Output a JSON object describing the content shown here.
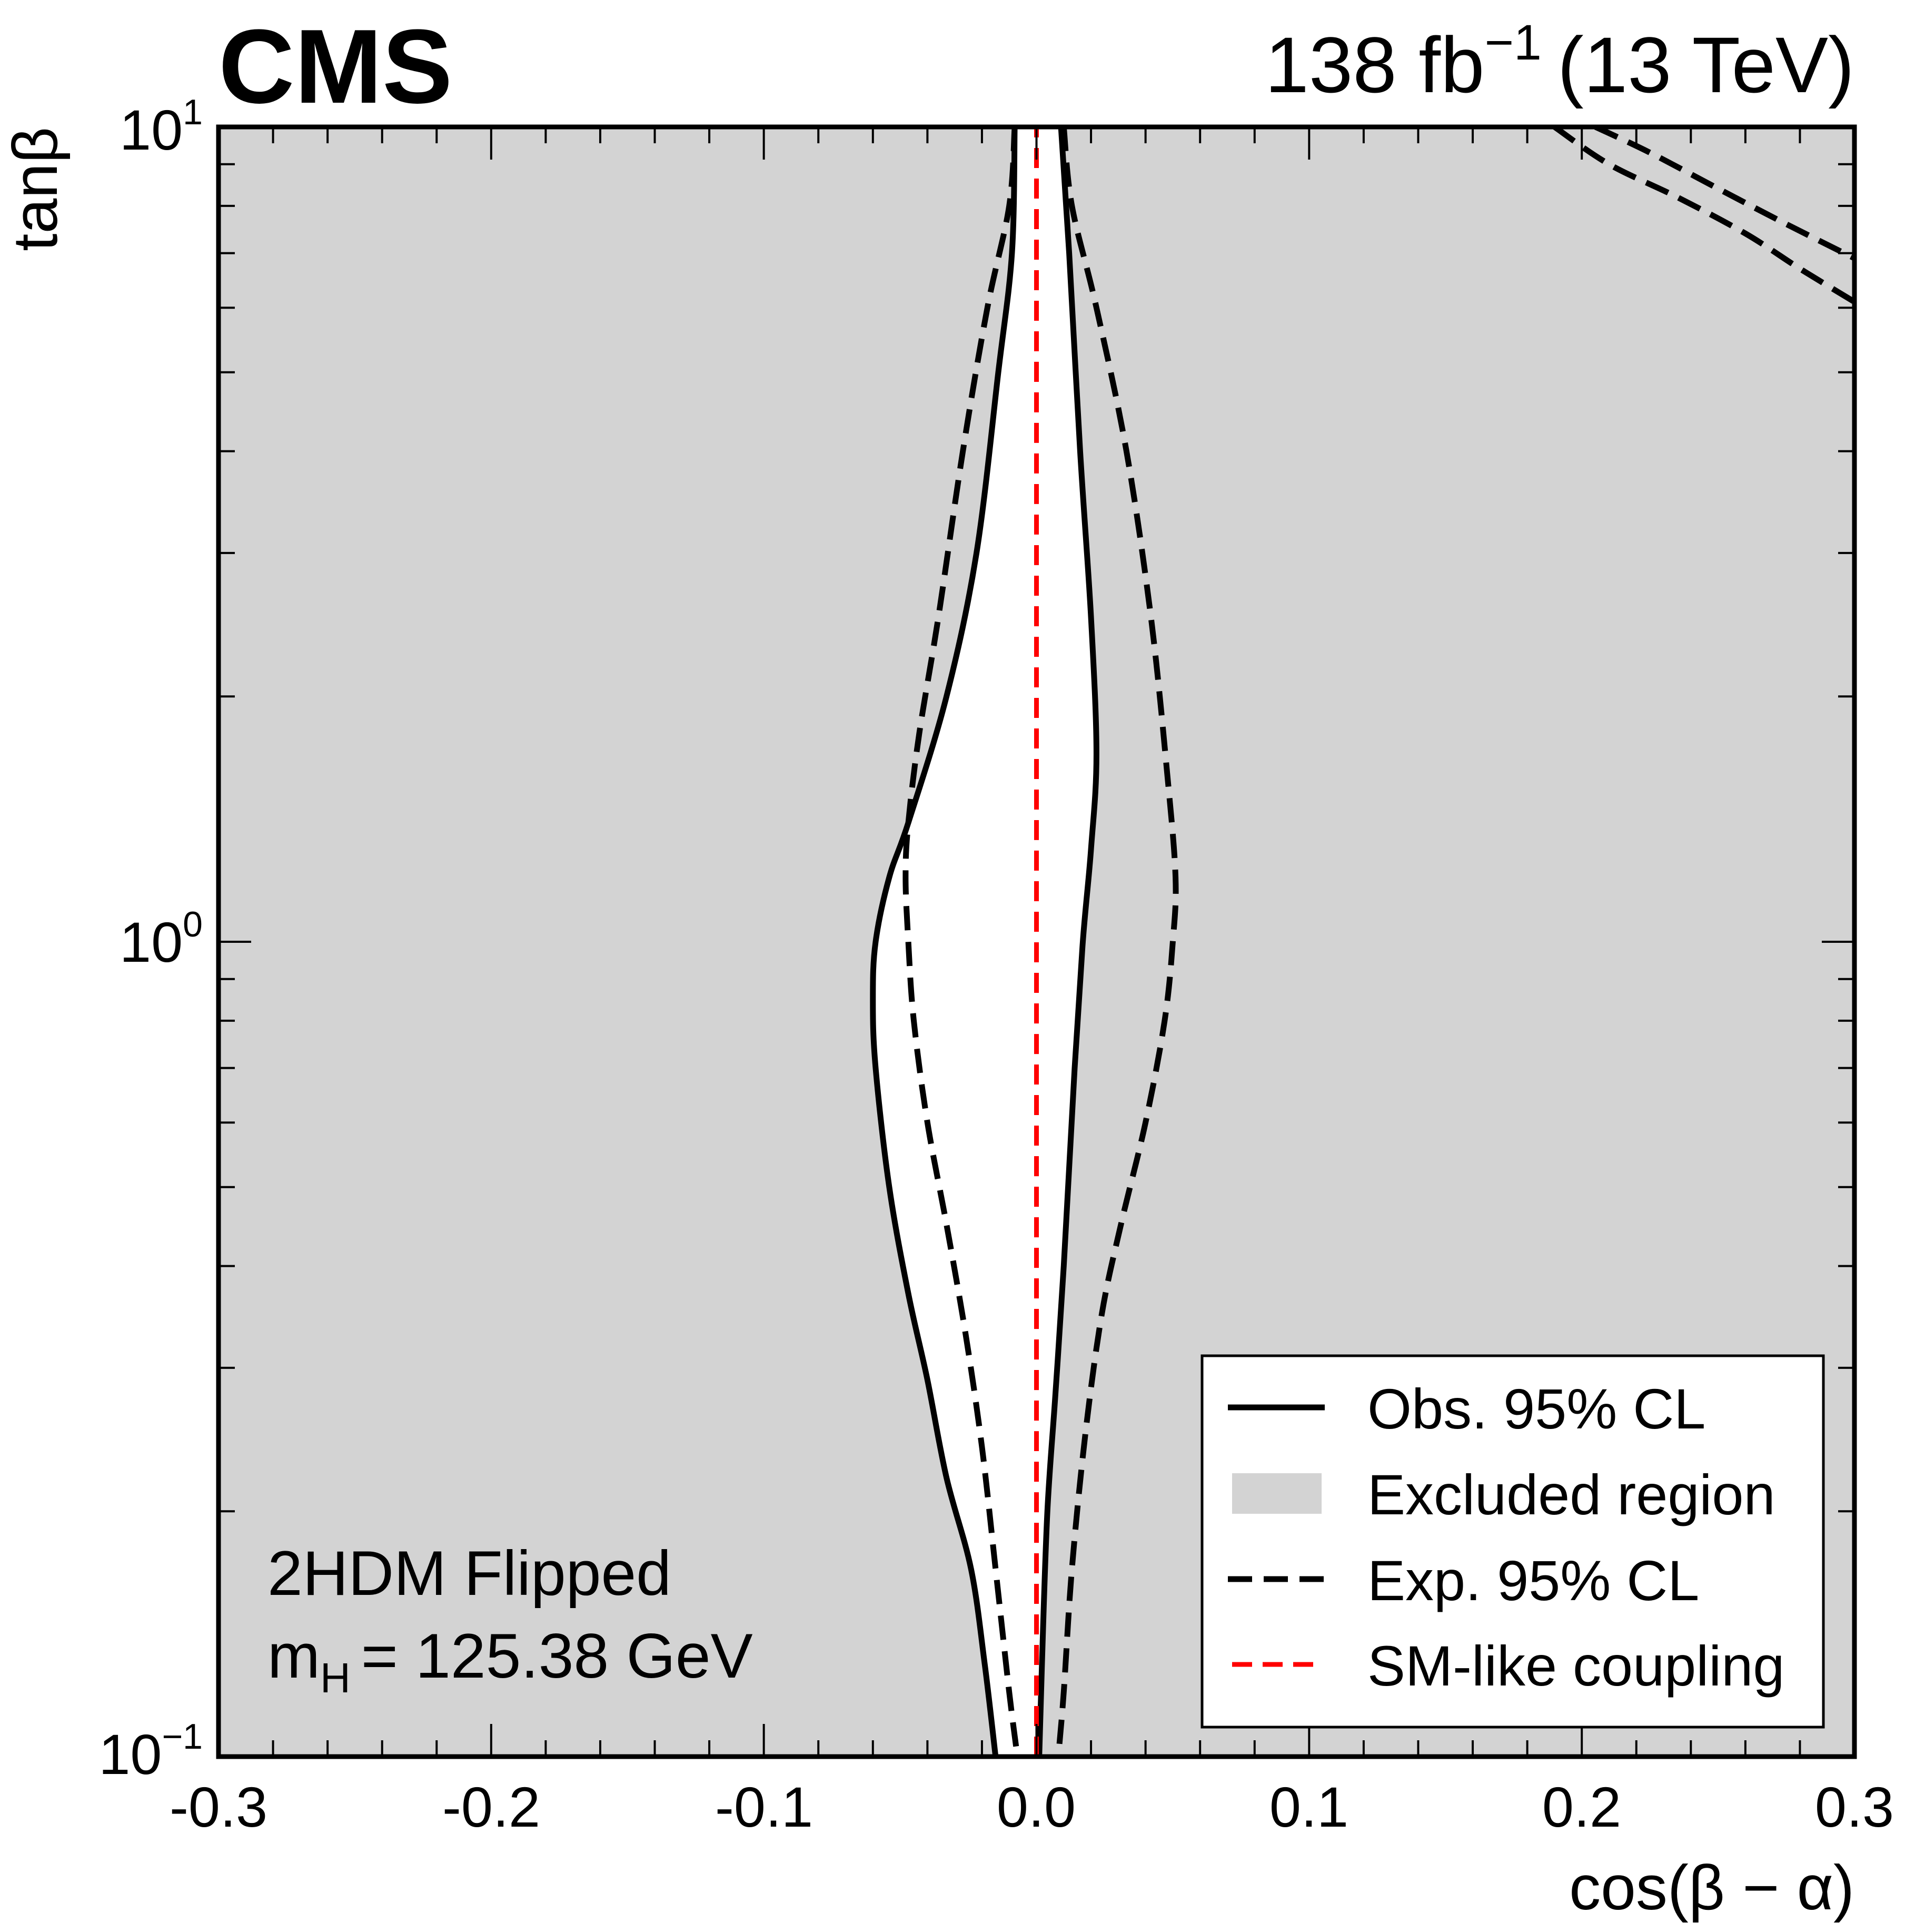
{
  "header": {
    "experiment": "CMS",
    "lumi_value": "138 fb",
    "lumi_exp": "−1",
    "energy": "(13 TeV)"
  },
  "annotation": {
    "model": "2HDM Flipped",
    "mass_sym": "m",
    "mass_sub": "H",
    "mass_val": "= 125.38 GeV"
  },
  "axes": {
    "xlabel": "cos(β − α)",
    "ylabel": "tanβ",
    "x_ticks": [
      "-0.3",
      "-0.2",
      "-0.1",
      "0.0",
      "0.1",
      "0.2",
      "0.3"
    ],
    "y_ticks": [
      {
        "base": "10",
        "exp": "−1"
      },
      {
        "base": "10",
        "exp": "0"
      },
      {
        "base": "10",
        "exp": "1"
      }
    ]
  },
  "legend": {
    "items": [
      {
        "label": "Obs. 95% CL",
        "style": "solid"
      },
      {
        "label": "Excluded region",
        "style": "fill"
      },
      {
        "label": "Exp. 95% CL",
        "style": "dashed"
      },
      {
        "label": "SM-like coupling",
        "style": "red-dashed"
      }
    ]
  },
  "colors": {
    "excluded_fill": "#d3d3d3",
    "allowed_fill": "#ffffff",
    "sm_line": "#ff0000",
    "contour": "#000000"
  },
  "chart_data": {
    "type": "contour",
    "title": "2HDM Flipped",
    "xlabel": "cos(β − α)",
    "ylabel": "tanβ",
    "xlim": [
      -0.3,
      0.3
    ],
    "ylim": [
      0.1,
      10
    ],
    "yscale": "log",
    "series": [
      {
        "name": "Obs. 95% CL left",
        "style": "solid",
        "points": [
          [
            -0.008,
            10
          ],
          [
            -0.009,
            7
          ],
          [
            -0.014,
            5
          ],
          [
            -0.022,
            3
          ],
          [
            -0.033,
            2
          ],
          [
            -0.047,
            1.4
          ],
          [
            -0.054,
            1.2
          ],
          [
            -0.059,
            1.0
          ],
          [
            -0.06,
            0.85
          ],
          [
            -0.059,
            0.7
          ],
          [
            -0.054,
            0.5
          ],
          [
            -0.047,
            0.37
          ],
          [
            -0.04,
            0.29
          ],
          [
            -0.033,
            0.22
          ],
          [
            -0.024,
            0.17
          ],
          [
            -0.019,
            0.13
          ],
          [
            -0.015,
            0.1
          ]
        ]
      },
      {
        "name": "Obs. 95% CL right",
        "style": "solid",
        "points": [
          [
            0.009,
            10
          ],
          [
            0.012,
            7
          ],
          [
            0.016,
            4
          ],
          [
            0.02,
            2.5
          ],
          [
            0.022,
            1.7
          ],
          [
            0.02,
            1.3
          ],
          [
            0.017,
            1.0
          ],
          [
            0.014,
            0.7
          ],
          [
            0.01,
            0.4
          ],
          [
            0.007,
            0.28
          ],
          [
            0.004,
            0.2
          ],
          [
            0.002,
            0.13
          ],
          [
            0.001,
            0.1
          ]
        ]
      },
      {
        "name": "Exp. 95% CL left",
        "style": "dashed",
        "points": [
          [
            -0.008,
            10
          ],
          [
            -0.01,
            8
          ],
          [
            -0.018,
            6
          ],
          [
            -0.027,
            4
          ],
          [
            -0.036,
            2.5
          ],
          [
            -0.043,
            1.8
          ],
          [
            -0.047,
            1.4
          ],
          [
            -0.048,
            1.2
          ],
          [
            -0.047,
            1.0
          ],
          [
            -0.045,
            0.8
          ],
          [
            -0.04,
            0.6
          ],
          [
            -0.033,
            0.45
          ],
          [
            -0.026,
            0.33
          ],
          [
            -0.02,
            0.24
          ],
          [
            -0.015,
            0.17
          ],
          [
            -0.01,
            0.12
          ],
          [
            -0.007,
            0.1
          ]
        ]
      },
      {
        "name": "Exp. 95% CL right",
        "style": "dashed",
        "points": [
          [
            0.01,
            10
          ],
          [
            0.013,
            8
          ],
          [
            0.022,
            6
          ],
          [
            0.033,
            4
          ],
          [
            0.042,
            2.5
          ],
          [
            0.048,
            1.6
          ],
          [
            0.051,
            1.2
          ],
          [
            0.05,
            1.0
          ],
          [
            0.047,
            0.8
          ],
          [
            0.04,
            0.6
          ],
          [
            0.031,
            0.45
          ],
          [
            0.024,
            0.35
          ],
          [
            0.018,
            0.25
          ],
          [
            0.013,
            0.17
          ],
          [
            0.01,
            0.12
          ],
          [
            0.008,
            0.1
          ]
        ]
      },
      {
        "name": "Exp. 95% CL upper (outer)",
        "style": "dashed",
        "points": [
          [
            0.19,
            10
          ],
          [
            0.21,
            9
          ],
          [
            0.235,
            8.2
          ],
          [
            0.26,
            7.4
          ],
          [
            0.28,
            6.7
          ],
          [
            0.3,
            6.1
          ]
        ]
      },
      {
        "name": "Exp. 95% CL upper (inner)",
        "style": "dashed",
        "points": [
          [
            0.205,
            10
          ],
          [
            0.225,
            9.3
          ],
          [
            0.25,
            8.4
          ],
          [
            0.275,
            7.6
          ],
          [
            0.3,
            6.9
          ]
        ]
      },
      {
        "name": "SM-like coupling",
        "style": "red-dashed",
        "points": [
          [
            0,
            0.1
          ],
          [
            0,
            10
          ]
        ]
      }
    ]
  }
}
